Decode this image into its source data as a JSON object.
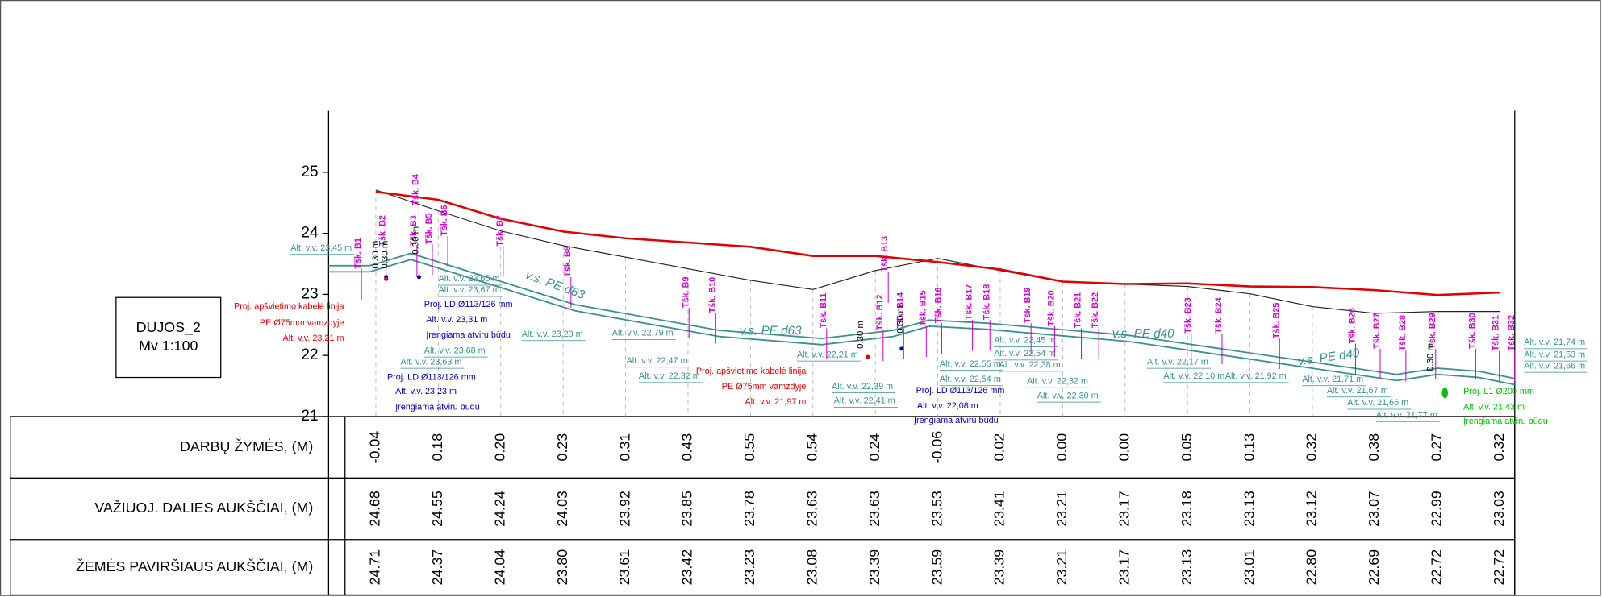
{
  "axis": {
    "ticks": [
      "25",
      "24",
      "23",
      "22",
      "21"
    ]
  },
  "box": {
    "title": "DUJOS_2",
    "scale": "Mv 1:100"
  },
  "table": {
    "rows": [
      {
        "label": "DARBŲ ŽYMĖS, (M)",
        "values": [
          "-0.04",
          "0.18",
          "0.20",
          "0.23",
          "0.31",
          "0.43",
          "0.55",
          "0.54",
          "0.24",
          "-0.06",
          "0.02",
          "0.00",
          "0.00",
          "0.05",
          "0.13",
          "0.32",
          "0.38",
          "0.27",
          "0.32"
        ]
      },
      {
        "label": "VAŽIUOJ. DALIES AUKŠČIAI, (M)",
        "values": [
          "24.68",
          "24.55",
          "24.24",
          "24.03",
          "23.92",
          "23.85",
          "23.78",
          "23.63",
          "23.63",
          "23.53",
          "23.41",
          "23.21",
          "23.17",
          "23.18",
          "23.13",
          "23.12",
          "23.07",
          "22.99",
          "23.03"
        ]
      },
      {
        "label": "ŽEMĖS PAVIRŠIAUS AUKŠČIAI, (M)",
        "values": [
          "24.71",
          "24.37",
          "24.04",
          "23.80",
          "23.61",
          "23.42",
          "23.23",
          "23.08",
          "23.39",
          "23.59",
          "23.39",
          "23.21",
          "23.17",
          "23.13",
          "23.01",
          "22.80",
          "22.69",
          "22.72",
          "22.72"
        ]
      }
    ]
  },
  "annotations": {
    "points": [
      "Tšk. B1",
      "Tšk. B2",
      "Tšk. B3",
      "Tšk. B4",
      "Tšk. B5",
      "Tšk. B6",
      "Tšk. B7",
      "Tšk. B8",
      "Tšk. B9",
      "Tšk. B10",
      "Tšk. B11",
      "Tšk. B12",
      "Tšk. B13",
      "Tšk. B14",
      "Tšk. B15",
      "Tšk. B16",
      "Tšk. B17",
      "Tšk. B18",
      "Tšk. B19",
      "Tšk. B20",
      "Tšk. B21",
      "Tšk. B22",
      "Tšk. B23",
      "Tšk. B24",
      "Tšk. B25",
      "Tšk. B26",
      "Tšk. B27",
      "Tšk. B28",
      "Tšk. B29",
      "Tšk. B30",
      "Tšk. B31",
      "Tšk. B32"
    ],
    "pipe_elevations": [
      "Alt. v.v. 23,45 m",
      "Alt. v.v. 23,65 m",
      "Alt. v.v. 23,67 m",
      "Alt. v.v. 23,68 m",
      "Alt. v.v. 23,63 m",
      "Alt. v.v. 23,29 m",
      "Alt. v.v. 22,79 m",
      "Alt. v.v. 22,47 m",
      "Alt. v.v. 22,32 m",
      "Alt. v.v. 22,21 m",
      "Alt. v.v. 22,39 m",
      "Alt. v.v. 22,41 m",
      "Alt. v.v. 22,55 m",
      "Alt. v.v. 22,54 m",
      "Alt. v.v. 22,45 m",
      "Alt. v.v. 22,54 m",
      "Alt. v.v. 22,38 m",
      "Alt. v.v. 22,32 m",
      "Alt. v.v. 22,30 m",
      "Alt. v.v. 22,17 m",
      "Alt. v.v. 22,10 m",
      "Alt. v.v. 21,92 m",
      "Alt. v.v. 21,71 m",
      "Alt. v.v. 21,67 m",
      "Alt. v.v. 21,66 m",
      "Alt. v.v. 21,77 m",
      "Alt. v.v. 21,74 m",
      "Alt. v.v. 21,53 m",
      "Alt. v.v. 21,66 m"
    ],
    "pipes": [
      "v.s. PE d63",
      "v.s. PE d63",
      "v.s. PE d40",
      "v.s. PE d40"
    ],
    "depths": [
      "0.30 m",
      "0.30 m",
      "0.30 m",
      "0.30 m",
      "0.30 m",
      "0.30 m"
    ],
    "cables": [
      [
        "Proj. apšvietimo kabelė linija",
        "PE Ø75mm vamzdyje",
        "Alt. v.v. 23,21 m"
      ],
      [
        "Proj. apšvietimo kabelė linija",
        "PE Ø75mm vamzdyje",
        "Alt. v.v. 21,97 m"
      ]
    ],
    "water": [
      [
        "Proj. LD Ø113/126 mm",
        "Alt. v.v. 23,31 m",
        "Įrengiama atviru būdu"
      ],
      [
        "Proj. LD Ø113/126 mm",
        "Alt. v.v. 23,23 m",
        "Įrengiama atviru būdu"
      ],
      [
        "Proj. LD Ø113/126 mm",
        "Alt. v.v. 22,08 m",
        "Įrengiama atviru būdu"
      ]
    ],
    "sewer": [
      "Proj. L1 Ø200 mm",
      "Alt. v.v. 21,43 m",
      "Įrengiama atviru būdu"
    ]
  }
}
